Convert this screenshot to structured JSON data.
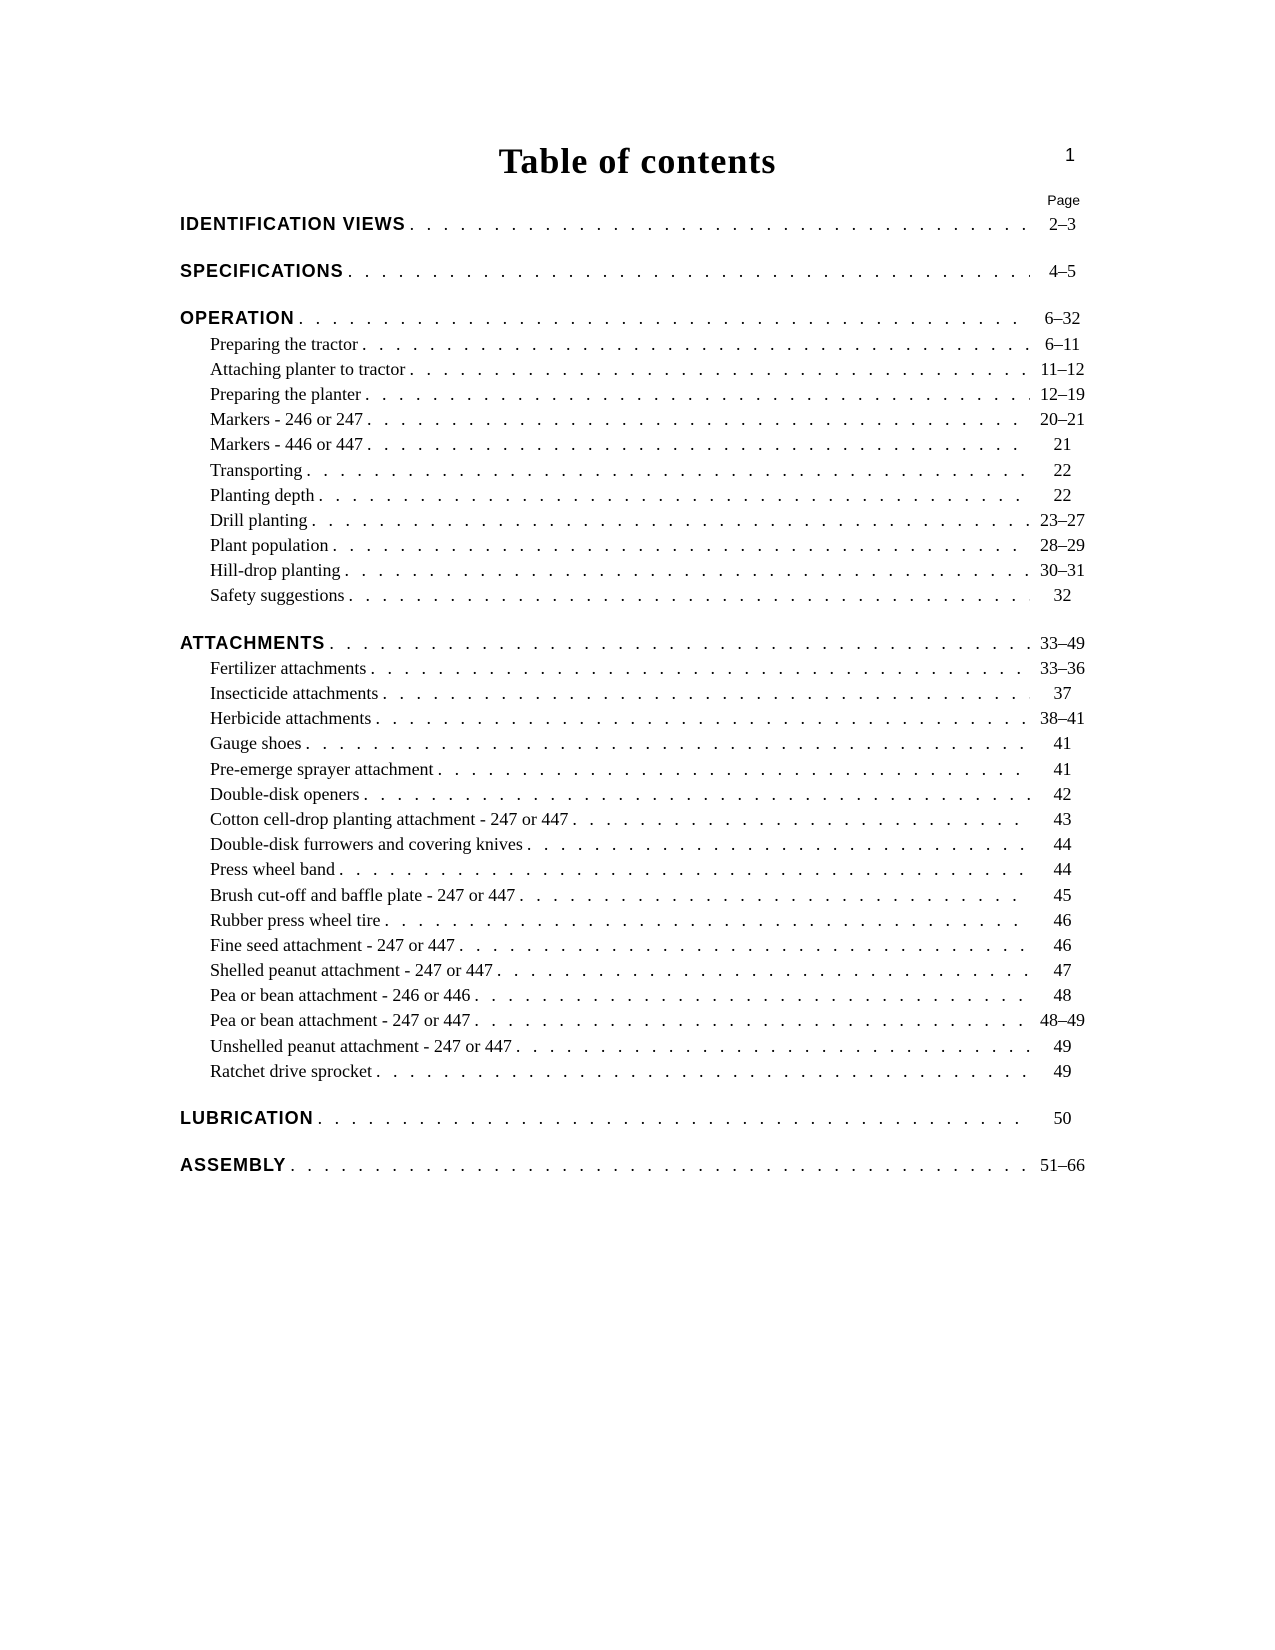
{
  "page_number": "1",
  "title": "Table of contents",
  "page_header_label": "Page",
  "sections": [
    {
      "main": {
        "label": "IDENTIFICATION VIEWS",
        "page": "2–3"
      },
      "subs": []
    },
    {
      "main": {
        "label": "SPECIFICATIONS",
        "page": "4–5"
      },
      "subs": []
    },
    {
      "main": {
        "label": "OPERATION",
        "page": "6–32"
      },
      "subs": [
        {
          "label": "Preparing the tractor",
          "page": "6–11"
        },
        {
          "label": "Attaching planter to tractor",
          "page": "11–12"
        },
        {
          "label": "Preparing the planter",
          "page": "12–19"
        },
        {
          "label": "Markers - 246 or 247",
          "page": "20–21"
        },
        {
          "label": "Markers - 446 or 447",
          "page": "21"
        },
        {
          "label": "Transporting",
          "page": "22"
        },
        {
          "label": "Planting depth",
          "page": "22"
        },
        {
          "label": "Drill planting",
          "page": "23–27"
        },
        {
          "label": "Plant population",
          "page": "28–29"
        },
        {
          "label": "Hill-drop planting",
          "page": "30–31"
        },
        {
          "label": "Safety suggestions",
          "page": "32"
        }
      ]
    },
    {
      "main": {
        "label": "ATTACHMENTS",
        "page": "33–49"
      },
      "subs": [
        {
          "label": "Fertilizer attachments",
          "page": "33–36"
        },
        {
          "label": "Insecticide attachments",
          "page": "37"
        },
        {
          "label": "Herbicide attachments",
          "page": "38–41"
        },
        {
          "label": "Gauge shoes",
          "page": "41"
        },
        {
          "label": "Pre-emerge sprayer attachment",
          "page": "41"
        },
        {
          "label": "Double-disk openers",
          "page": "42"
        },
        {
          "label": "Cotton cell-drop planting attachment - 247 or 447",
          "page": "43"
        },
        {
          "label": "Double-disk furrowers and covering knives",
          "page": "44"
        },
        {
          "label": "Press wheel band",
          "page": "44"
        },
        {
          "label": "Brush cut-off and baffle plate - 247 or 447",
          "page": "45"
        },
        {
          "label": "Rubber press wheel tire",
          "page": "46"
        },
        {
          "label": "Fine seed attachment - 247 or 447",
          "page": "46"
        },
        {
          "label": "Shelled peanut attachment - 247 or 447",
          "page": "47"
        },
        {
          "label": "Pea or bean attachment - 246 or 446",
          "page": "48"
        },
        {
          "label": "Pea or bean attachment - 247 or 447",
          "page": "48–49"
        },
        {
          "label": "Unshelled peanut attachment - 247 or 447",
          "page": "49"
        },
        {
          "label": "Ratchet drive sprocket",
          "page": "49"
        }
      ]
    },
    {
      "main": {
        "label": "LUBRICATION",
        "page": "50"
      },
      "subs": []
    },
    {
      "main": {
        "label": "ASSEMBLY",
        "page": "51–66"
      },
      "subs": []
    }
  ]
}
